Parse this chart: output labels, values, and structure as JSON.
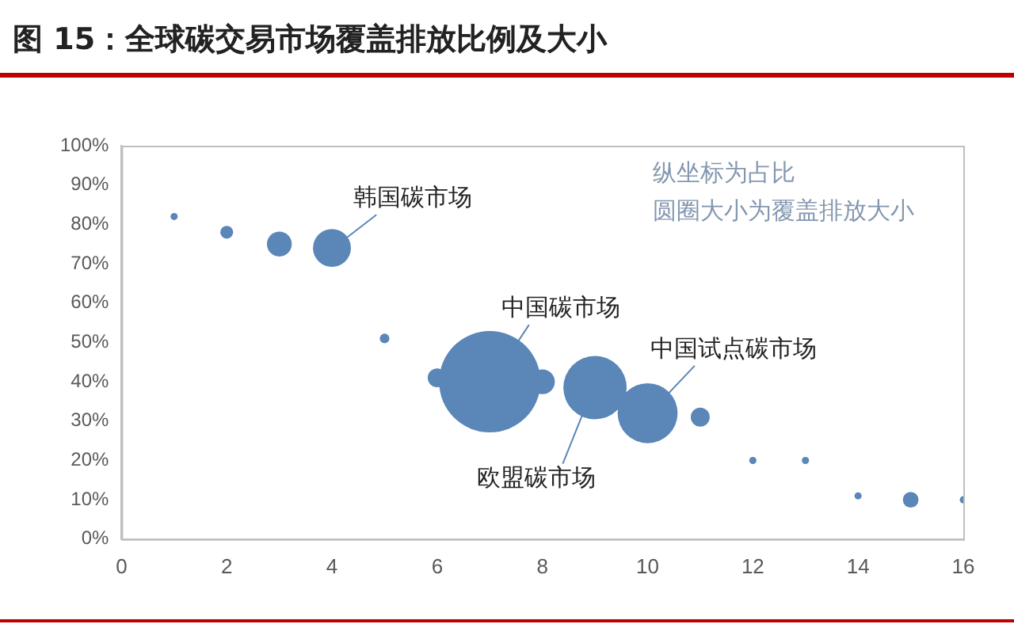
{
  "chart_data": {
    "type": "bubble",
    "title": "图 15：全球碳交易市场覆盖排放比例及大小",
    "x": [
      1,
      2,
      3,
      4,
      5,
      6,
      7,
      8,
      9,
      10,
      11,
      12,
      13,
      14,
      15,
      16
    ],
    "values": [
      82,
      78,
      75,
      74,
      51,
      41,
      40,
      40,
      38.5,
      32,
      31,
      20,
      20,
      11,
      10,
      10
    ],
    "sizes": [
      0.005,
      0.016,
      0.06,
      0.14,
      0.009,
      0.035,
      1,
      0.06,
      0.39,
      0.35,
      0.035,
      0.005,
      0.005,
      0.005,
      0.024,
      0.005
    ],
    "color": "#5a86b8",
    "xlim": [
      0,
      16
    ],
    "xticks": [
      0,
      2,
      4,
      6,
      8,
      10,
      12,
      14,
      16
    ],
    "ylim": [
      0,
      100
    ],
    "yticks": [
      {
        "value": 0,
        "label": "0%"
      },
      {
        "value": 10,
        "label": "10%"
      },
      {
        "value": 20,
        "label": "20%"
      },
      {
        "value": 30,
        "label": "30%"
      },
      {
        "value": 40,
        "label": "40%"
      },
      {
        "value": 50,
        "label": "50%"
      },
      {
        "value": 60,
        "label": "60%"
      },
      {
        "value": 70,
        "label": "70%"
      },
      {
        "value": 80,
        "label": "80%"
      },
      {
        "value": 90,
        "label": "90%"
      },
      {
        "value": 100,
        "label": "100%"
      }
    ],
    "annotations": [
      {
        "text": "韩国碳市场",
        "x": 4,
        "y": 74
      },
      {
        "text": "中国碳市场",
        "x": 7,
        "y": 40
      },
      {
        "text": "欧盟碳市场",
        "x": 9,
        "y": 38.5
      },
      {
        "text": "中国试点碳市场",
        "x": 10,
        "y": 32
      },
      "纵坐标为占比",
      "圆圈大小为覆盖排放大小"
    ]
  }
}
